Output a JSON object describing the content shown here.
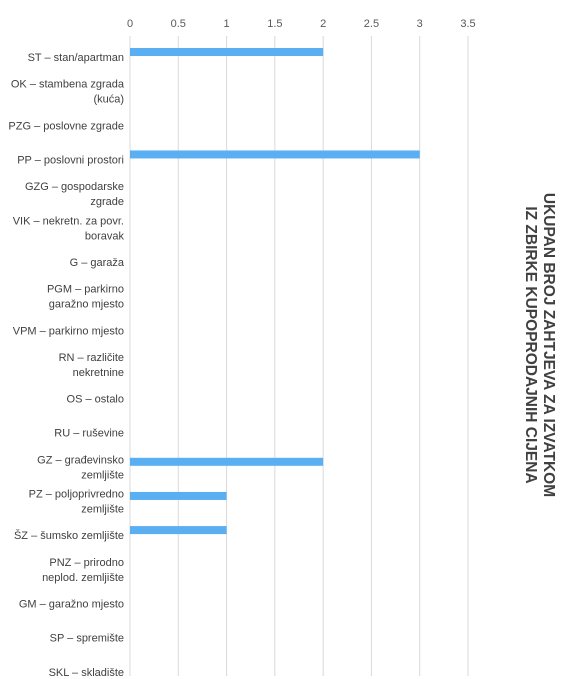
{
  "chart_data": {
    "type": "bar",
    "orientation": "horizontal",
    "title": "UKUPAN BROJ ZAHTJEVA ZA IZVATKOM IZ ZBIRKE KUPOPRODAJNIH CIJENA",
    "title_lines": [
      "UKUPAN BROJ ZAHTJEVA ZA IZVATKOM",
      "IZ ZBIRKE KUPOPRODAJNIH CIJENA"
    ],
    "xlim": [
      0,
      3.5
    ],
    "xticks": [
      "0",
      "0.5",
      "1",
      "1.5",
      "2",
      "2.5",
      "3",
      "3.5"
    ],
    "x_axis_position": "top",
    "grid": true,
    "bar_color": "#5aaef2",
    "categories": [
      [
        "ST – stan/apartman"
      ],
      [
        "OK – stambena zgrada",
        "(kuća)"
      ],
      [
        "PZG – poslovne zgrade"
      ],
      [
        "PP – poslovni prostori"
      ],
      [
        "GZG – gospodarske",
        "zgrade"
      ],
      [
        "VIK – nekretn. za povr.",
        "boravak"
      ],
      [
        "G – garaža"
      ],
      [
        "PGM – parkirno",
        "garažno mjesto"
      ],
      [
        "VPM – parkirno mjesto"
      ],
      [
        "RN – različite",
        "nekretnine"
      ],
      [
        "OS – ostalo"
      ],
      [
        "RU – ruševine"
      ],
      [
        "GZ – građevinsko",
        "zemljište"
      ],
      [
        "PZ – poljoprivredno",
        "zemljište"
      ],
      [
        "ŠZ – šumsko zemljište"
      ],
      [
        "PNZ – prirodno",
        "neplod. zemljište"
      ],
      [
        "GM – garažno mjesto"
      ],
      [
        "SP – spremište"
      ],
      [
        "SKL – skladište"
      ]
    ],
    "values": [
      2,
      0,
      0,
      3,
      0,
      0,
      0,
      0,
      0,
      0,
      0,
      0,
      2,
      1,
      1,
      0,
      0,
      0,
      0
    ]
  }
}
